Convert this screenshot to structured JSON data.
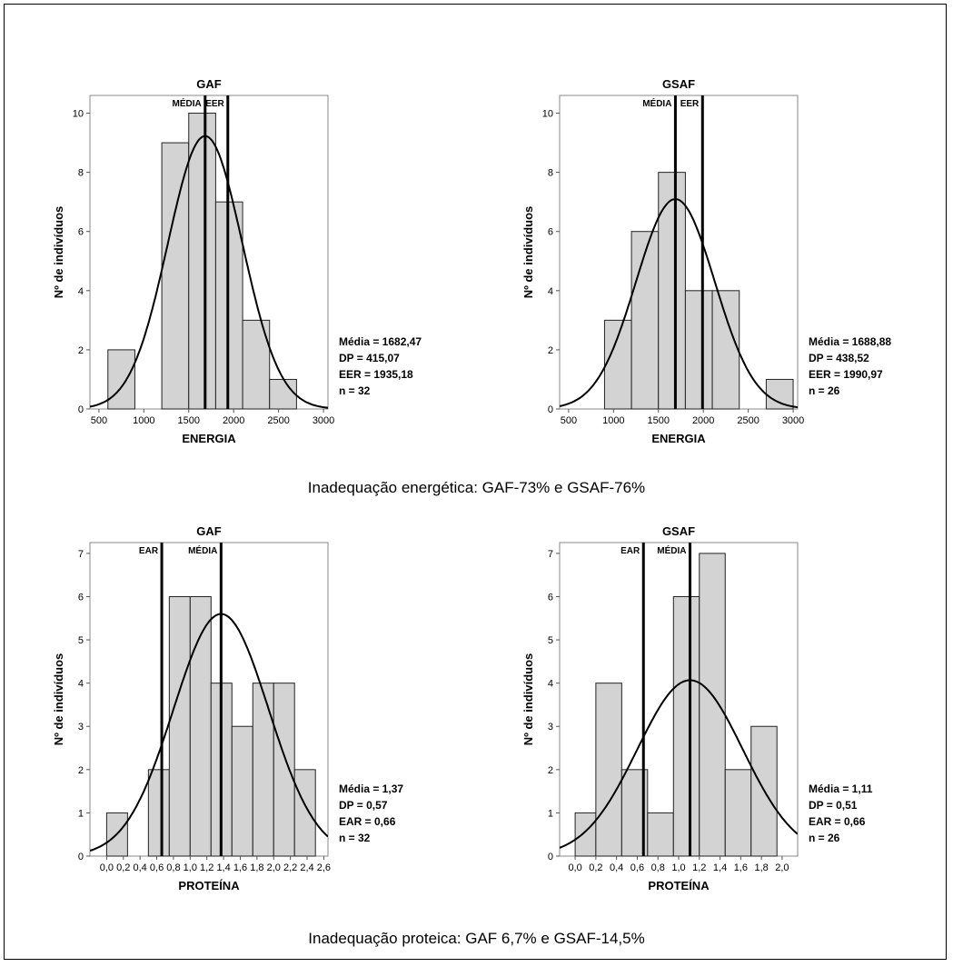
{
  "captions": {
    "energy": "Inadequação energética: GAF-73% e GSAF-76%",
    "protein": "Inadequação proteica: GAF 6,7% e GSAF-14,5%"
  },
  "chart_data": [
    {
      "type": "bar",
      "title": "GAF",
      "xlabel": "ENERGIA",
      "ylabel": "Nº de indivíduos",
      "xlim": [
        400,
        3050
      ],
      "ylim": [
        0,
        10.6
      ],
      "xticks": [
        500,
        1000,
        1500,
        2000,
        2500,
        3000
      ],
      "xtick_labels": [
        "500",
        "1000",
        "1500",
        "2000",
        "2500",
        "3000"
      ],
      "yticks": [
        0,
        2,
        4,
        6,
        8,
        10
      ],
      "ytick_labels": [
        "0",
        "2",
        "4",
        "6",
        "8",
        "10"
      ],
      "bins": [
        {
          "x0": 600,
          "x1": 900,
          "count": 2
        },
        {
          "x0": 1200,
          "x1": 1500,
          "count": 9
        },
        {
          "x0": 1500,
          "x1": 1800,
          "count": 10
        },
        {
          "x0": 1800,
          "x1": 2100,
          "count": 7
        },
        {
          "x0": 2100,
          "x1": 2400,
          "count": 3
        },
        {
          "x0": 2400,
          "x1": 2700,
          "count": 1
        }
      ],
      "normal_curve": {
        "mean": 1682.47,
        "sd": 415.07,
        "n": 32
      },
      "vlines": [
        {
          "value": 1682.47,
          "label": "MÉDIA",
          "label_side": "left"
        },
        {
          "value": 1935.18,
          "label": "EER",
          "label_side": "left"
        }
      ],
      "stats": [
        "Média = 1682,47",
        "DP = 415,07",
        "EER = 1935,18",
        "n = 32"
      ]
    },
    {
      "type": "bar",
      "title": "GSAF",
      "xlabel": "ENERGIA",
      "ylabel": "Nº de indivíduos",
      "xlim": [
        400,
        3050
      ],
      "ylim": [
        0,
        10.6
      ],
      "xticks": [
        500,
        1000,
        1500,
        2000,
        2500,
        3000
      ],
      "xtick_labels": [
        "500",
        "1000",
        "1500",
        "2000",
        "2500",
        "3000"
      ],
      "yticks": [
        0,
        2,
        4,
        6,
        8,
        10
      ],
      "ytick_labels": [
        "0",
        "2",
        "4",
        "6",
        "8",
        "10"
      ],
      "bins": [
        {
          "x0": 900,
          "x1": 1200,
          "count": 3
        },
        {
          "x0": 1200,
          "x1": 1500,
          "count": 6
        },
        {
          "x0": 1500,
          "x1": 1800,
          "count": 8
        },
        {
          "x0": 1800,
          "x1": 2100,
          "count": 4
        },
        {
          "x0": 2100,
          "x1": 2400,
          "count": 4
        },
        {
          "x0": 2700,
          "x1": 3000,
          "count": 1
        }
      ],
      "normal_curve": {
        "mean": 1688.88,
        "sd": 438.52,
        "n": 26
      },
      "vlines": [
        {
          "value": 1688.88,
          "label": "MÉDIA",
          "label_side": "left"
        },
        {
          "value": 1990.97,
          "label": "EER",
          "label_side": "left"
        }
      ],
      "stats": [
        "Média = 1688,88",
        "DP = 438,52",
        "EER = 1990,97",
        "n = 26"
      ]
    },
    {
      "type": "bar",
      "title": "GAF",
      "xlabel": "PROTEÍNA",
      "ylabel": "Nº de indivíduos",
      "xlim": [
        -0.2,
        2.65
      ],
      "ylim": [
        0,
        7.25
      ],
      "xticks": [
        0,
        0.2,
        0.4,
        0.6,
        0.8,
        1.0,
        1.2,
        1.4,
        1.6,
        1.8,
        2.0,
        2.2,
        2.4,
        2.6
      ],
      "xtick_labels": [
        "0,0",
        "0,2",
        "0,4",
        "0,6",
        "0,8",
        "1,0",
        "1,2",
        "1,4",
        "1,6",
        "1,8",
        "2,0",
        "2,2",
        "2,4",
        "2,6"
      ],
      "yticks": [
        0,
        1,
        2,
        3,
        4,
        5,
        6,
        7
      ],
      "ytick_labels": [
        "0",
        "1",
        "2",
        "3",
        "4",
        "5",
        "6",
        "7"
      ],
      "bins": [
        {
          "x0": 0.0,
          "x1": 0.25,
          "count": 1
        },
        {
          "x0": 0.5,
          "x1": 0.75,
          "count": 2
        },
        {
          "x0": 0.75,
          "x1": 1.0,
          "count": 6
        },
        {
          "x0": 1.0,
          "x1": 1.25,
          "count": 6
        },
        {
          "x0": 1.25,
          "x1": 1.5,
          "count": 4
        },
        {
          "x0": 1.5,
          "x1": 1.75,
          "count": 3
        },
        {
          "x0": 1.75,
          "x1": 2.0,
          "count": 4
        },
        {
          "x0": 2.0,
          "x1": 2.25,
          "count": 4
        },
        {
          "x0": 2.25,
          "x1": 2.5,
          "count": 2
        }
      ],
      "normal_curve": {
        "mean": 1.37,
        "sd": 0.57,
        "n": 32
      },
      "vlines": [
        {
          "value": 0.66,
          "label": "EAR",
          "label_side": "left"
        },
        {
          "value": 1.37,
          "label": "MÉDIA",
          "label_side": "left"
        }
      ],
      "stats": [
        "Média = 1,37",
        "DP = 0,57",
        "EAR = 0,66",
        "n = 32"
      ]
    },
    {
      "type": "bar",
      "title": "GSAF",
      "xlabel": "PROTEÍNA",
      "ylabel": "Nº de indivíduos",
      "xlim": [
        -0.15,
        2.15
      ],
      "ylim": [
        0,
        7.25
      ],
      "xticks": [
        0,
        0.2,
        0.4,
        0.6,
        0.8,
        1.0,
        1.2,
        1.4,
        1.6,
        1.8,
        2.0
      ],
      "xtick_labels": [
        "0,0",
        "0,2",
        "0,4",
        "0,6",
        "0,8",
        "1,0",
        "1,2",
        "1,4",
        "1,6",
        "1,8",
        "2,0"
      ],
      "yticks": [
        0,
        1,
        2,
        3,
        4,
        5,
        6,
        7
      ],
      "ytick_labels": [
        "0",
        "1",
        "2",
        "3",
        "4",
        "5",
        "6",
        "7"
      ],
      "bins": [
        {
          "x0": 0.0,
          "x1": 0.2,
          "count": 1
        },
        {
          "x0": 0.2,
          "x1": 0.45,
          "count": 4
        },
        {
          "x0": 0.45,
          "x1": 0.7,
          "count": 2
        },
        {
          "x0": 0.7,
          "x1": 0.95,
          "count": 1
        },
        {
          "x0": 0.95,
          "x1": 1.2,
          "count": 6
        },
        {
          "x0": 1.2,
          "x1": 1.45,
          "count": 7
        },
        {
          "x0": 1.45,
          "x1": 1.7,
          "count": 2
        },
        {
          "x0": 1.7,
          "x1": 1.95,
          "count": 3
        }
      ],
      "normal_curve": {
        "mean": 1.11,
        "sd": 0.51,
        "n": 26
      },
      "vlines": [
        {
          "value": 0.66,
          "label": "EAR",
          "label_side": "left"
        },
        {
          "value": 1.11,
          "label": "MÉDIA",
          "label_side": "left"
        }
      ],
      "stats": [
        "Média = 1,11",
        "DP = 0,51",
        "EAR = 0,66",
        "n = 26"
      ]
    }
  ]
}
